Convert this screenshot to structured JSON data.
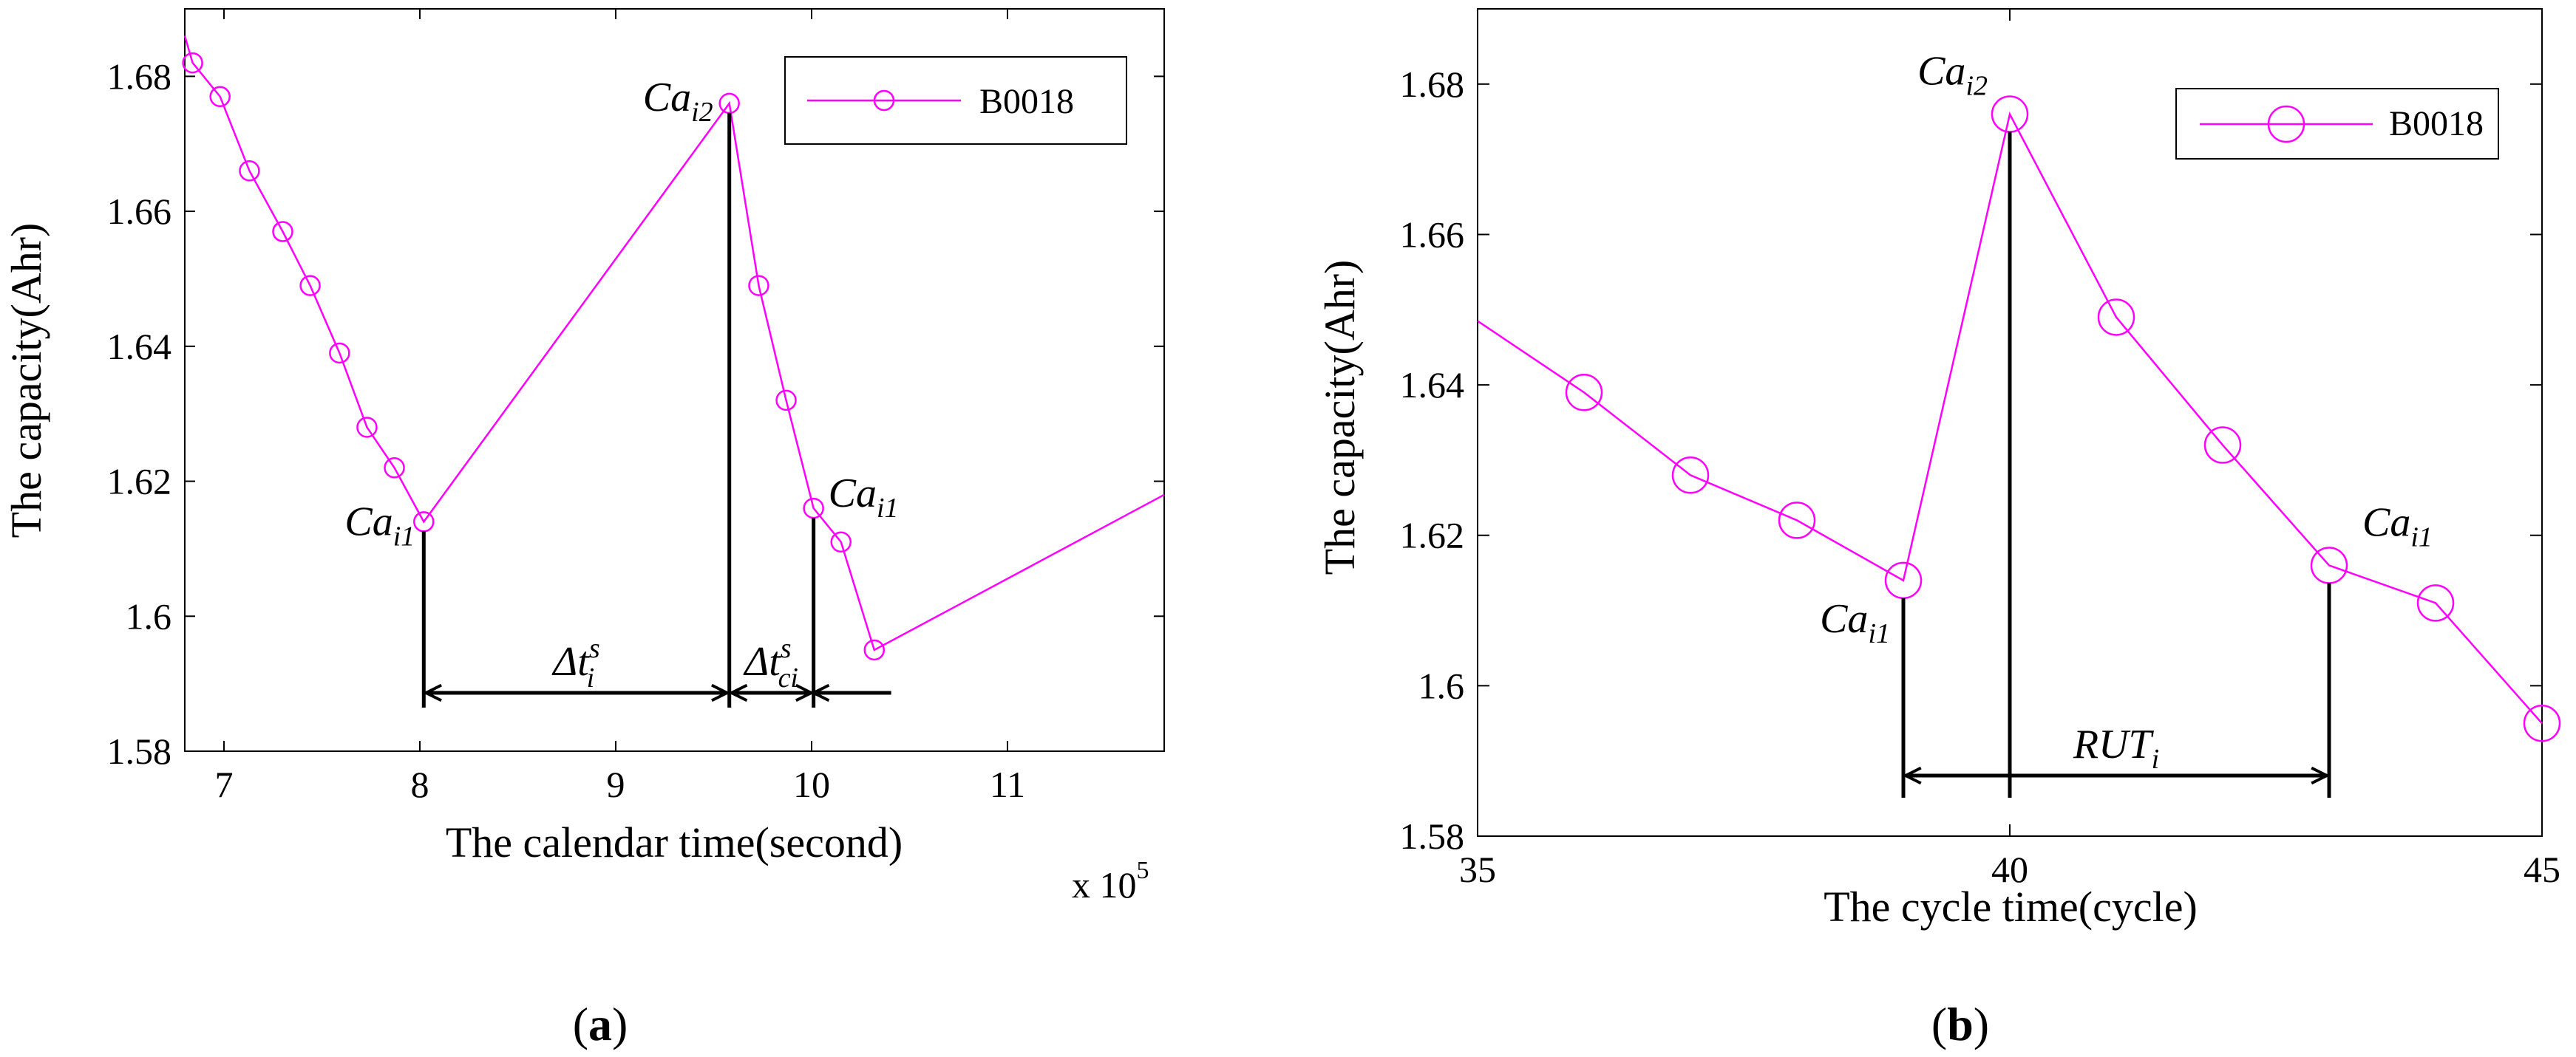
{
  "chart_data": [
    {
      "type": "line",
      "panel_label": {
        "open": "(",
        "letter": "a",
        "close": ")"
      },
      "xlabel": "The calendar time(second)",
      "ylabel": "The capacity(Ahr)",
      "x_multiplier": {
        "base": "x 10",
        "exp": "5"
      },
      "xlim": [
        6.8,
        11.8
      ],
      "ylim": [
        1.58,
        1.69
      ],
      "xticks": [
        7,
        8,
        9,
        10,
        11
      ],
      "xtick_labels": [
        "7",
        "8",
        "9",
        "10",
        "11"
      ],
      "yticks": [
        1.58,
        1.6,
        1.62,
        1.64,
        1.66,
        1.68
      ],
      "ytick_labels": [
        "1.58",
        "1.6",
        "1.62",
        "1.64",
        "1.66",
        "1.68"
      ],
      "legend": {
        "label": "B0018",
        "position": "top-right",
        "color": "#ff00ff"
      },
      "series": [
        {
          "name": "B0018",
          "color": "#ff00ff",
          "line_start": {
            "x": 6.8,
            "y": 1.686
          },
          "x": [
            6.84,
            6.98,
            7.13,
            7.3,
            7.44,
            7.59,
            7.73,
            7.87,
            8.02,
            9.58,
            9.73,
            9.87,
            10.01,
            10.15,
            10.32
          ],
          "y": [
            1.682,
            1.677,
            1.666,
            1.657,
            1.649,
            1.639,
            1.628,
            1.622,
            1.614,
            1.676,
            1.649,
            1.632,
            1.616,
            1.611,
            1.595
          ],
          "line_end": {
            "x": 11.8,
            "y": 1.618
          }
        }
      ],
      "annotations": [
        {
          "base": "Ca",
          "sub": "i1",
          "at": {
            "x": 8.02,
            "y": 1.614
          }
        },
        {
          "base": "Ca",
          "sub": "i2",
          "at": {
            "x": 9.58,
            "y": 1.676
          }
        },
        {
          "base": "Ca",
          "sub": "i1",
          "at": {
            "x": 10.01,
            "y": 1.616
          }
        },
        {
          "base": "Δt",
          "sup": "s",
          "sub": "i",
          "span": [
            8.02,
            9.58
          ]
        },
        {
          "base": "Δt",
          "sup": "s",
          "sub": "ci",
          "span": [
            9.58,
            10.01
          ]
        }
      ]
    },
    {
      "type": "line",
      "panel_label": {
        "open": "(",
        "letter": "b",
        "close": ")"
      },
      "xlabel": "The cycle time(cycle)",
      "ylabel": "The capacity(Ahr)",
      "xlim": [
        35,
        45
      ],
      "ylim": [
        1.58,
        1.69
      ],
      "xticks": [
        35,
        40,
        45
      ],
      "xtick_labels": [
        "35",
        "40",
        "45"
      ],
      "yticks": [
        1.58,
        1.6,
        1.62,
        1.64,
        1.66,
        1.68
      ],
      "ytick_labels": [
        "1.58",
        "1.6",
        "1.62",
        "1.64",
        "1.66",
        "1.68"
      ],
      "legend": {
        "label": "B0018",
        "position": "top-right",
        "color": "#ff00ff"
      },
      "series": [
        {
          "name": "B0018",
          "color": "#ff00ff",
          "line_start": {
            "x": 35,
            "y": 1.6485
          },
          "x": [
            36,
            37,
            38,
            39,
            40,
            41,
            42,
            43,
            44,
            45
          ],
          "y": [
            1.639,
            1.628,
            1.622,
            1.614,
            1.676,
            1.649,
            1.632,
            1.616,
            1.611,
            1.595
          ]
        }
      ],
      "annotations": [
        {
          "base": "Ca",
          "sub": "i1",
          "at": {
            "x": 39,
            "y": 1.614
          }
        },
        {
          "base": "Ca",
          "sub": "i2",
          "at": {
            "x": 40,
            "y": 1.676
          }
        },
        {
          "base": "Ca",
          "sub": "i1",
          "at": {
            "x": 43,
            "y": 1.616
          }
        },
        {
          "base": "RUT",
          "sub": "i",
          "span": [
            39,
            43
          ]
        }
      ]
    }
  ]
}
